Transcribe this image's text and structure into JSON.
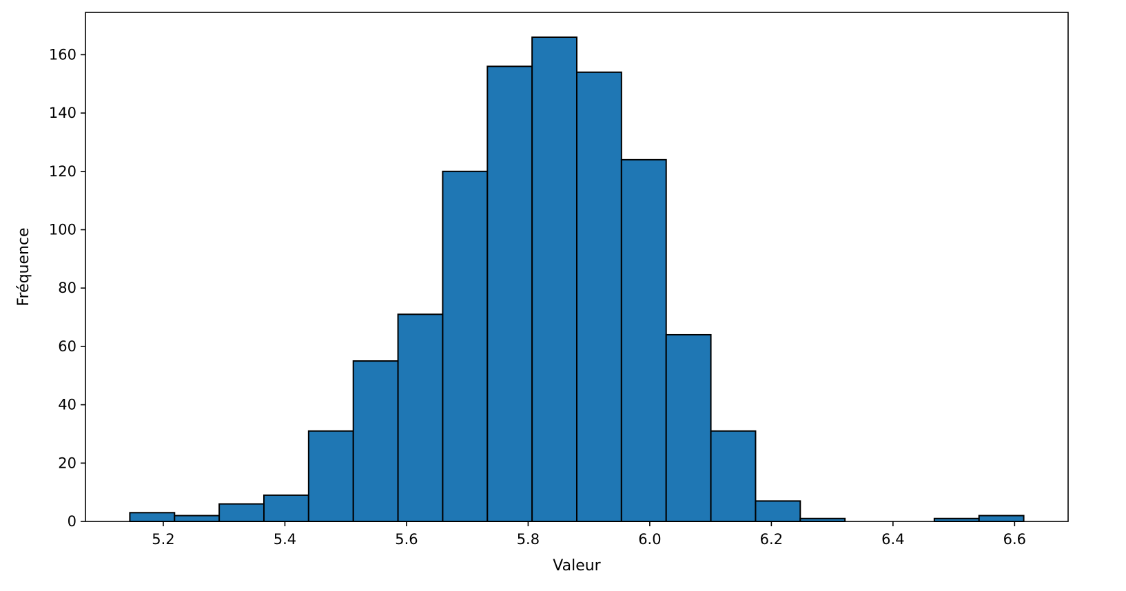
{
  "chart_data": {
    "type": "bar",
    "subtype": "histogram",
    "title": "",
    "xlabel": "Valeur",
    "ylabel": "Fréquence",
    "bin_start": 5.145,
    "bin_width": 0.0735,
    "counts": [
      3,
      2,
      6,
      9,
      31,
      55,
      71,
      120,
      156,
      166,
      154,
      124,
      64,
      31,
      7,
      1,
      0,
      0,
      1,
      2
    ],
    "xlim": [
      5.072,
      6.688
    ],
    "ylim": [
      0,
      174.5
    ],
    "x_ticks": [
      5.2,
      5.4,
      5.6,
      5.8,
      6.0,
      6.2,
      6.4,
      6.6
    ],
    "x_tick_labels": [
      "5.2",
      "5.4",
      "5.6",
      "5.8",
      "6.0",
      "6.2",
      "6.4",
      "6.6"
    ],
    "y_ticks": [
      0,
      20,
      40,
      60,
      80,
      100,
      120,
      140,
      160
    ],
    "y_tick_labels": [
      "0",
      "20",
      "40",
      "60",
      "80",
      "100",
      "120",
      "140",
      "160"
    ],
    "bar_color": "#1f77b4",
    "edge_color": "#000000",
    "grid": false,
    "legend": "none"
  }
}
